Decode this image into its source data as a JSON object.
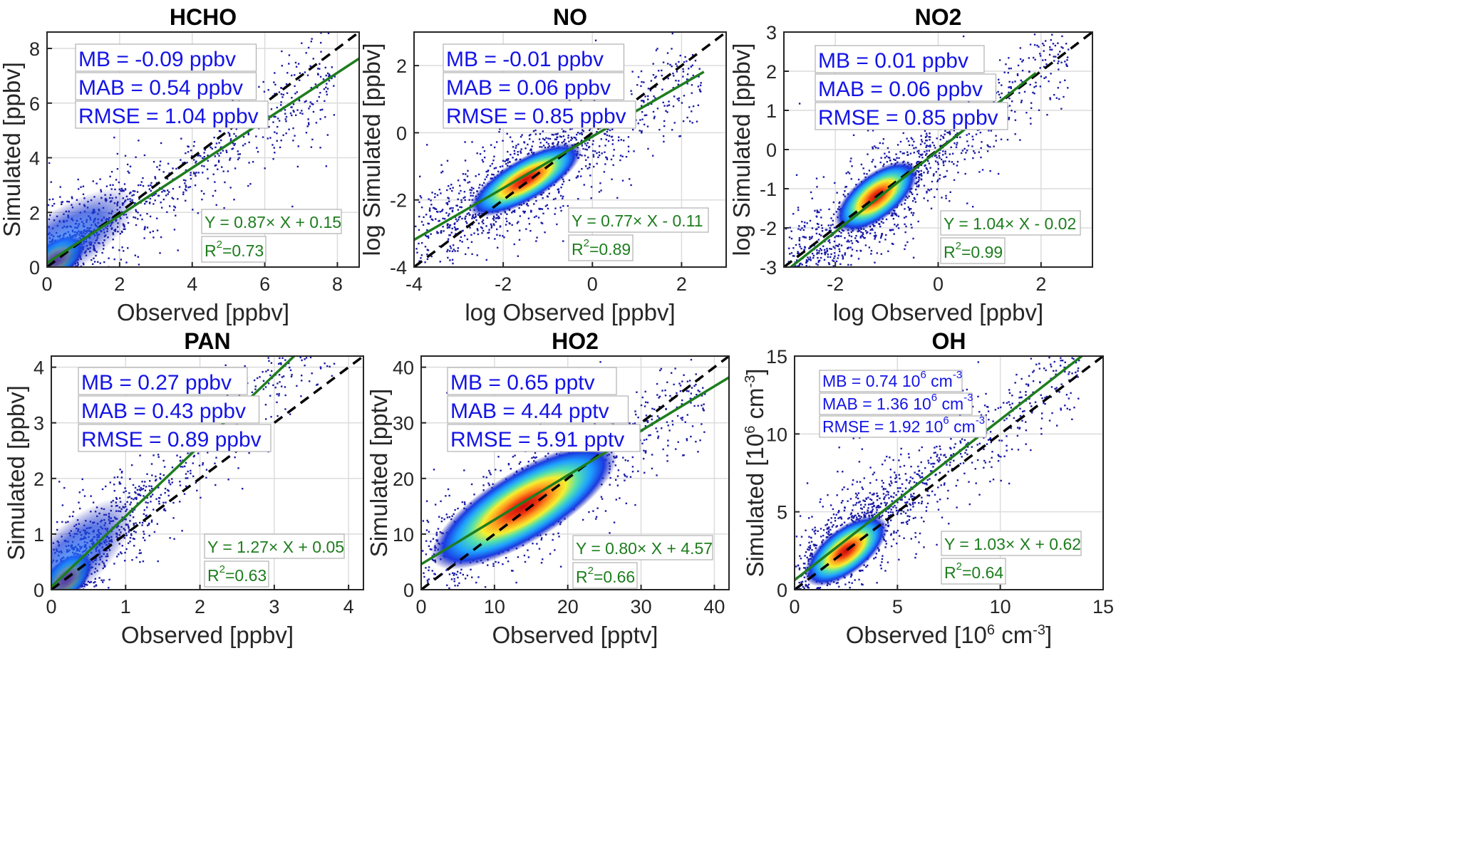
{
  "colors": {
    "scatter_points": "#1a1aa6",
    "density_core": "#e02010",
    "fit_line": "#1e7d1e",
    "one_to_one_line": "#000000",
    "stats_text": "#1414e6",
    "fit_text": "#1e7d1e"
  },
  "chart_data": [
    {
      "type": "scatter",
      "title": "HCHO",
      "xlabel": "Observed [ppbv]",
      "ylabel": "Simulated [ppbv]",
      "xlim": [
        0,
        8.6
      ],
      "ylim": [
        0,
        8.6
      ],
      "xticks": [
        "0",
        "2",
        "4",
        "6",
        "8"
      ],
      "xtick_values": [
        0,
        2,
        4,
        6,
        8
      ],
      "yticks": [
        "0",
        "2",
        "4",
        "6",
        "8"
      ],
      "ytick_values": [
        0,
        2,
        4,
        6,
        8
      ],
      "grid": true,
      "stats": [
        "MB = -0.09 ppbv",
        "MAB = 0.54 ppbv",
        "RMSE = 1.04 ppbv"
      ],
      "fit": {
        "slope": 0.87,
        "intercept": 0.15,
        "label": "Y = 0.87× X + 0.15",
        "r2_label": "R",
        "r2_value": "=0.73"
      },
      "one_to_one": true,
      "density_peak": [
        0.25,
        0.3
      ]
    },
    {
      "type": "scatter",
      "title": "NO",
      "xlabel": "log Observed [ppbv]",
      "ylabel": "log Simulated [ppbv]",
      "xlim": [
        -4,
        3
      ],
      "ylim": [
        -4,
        3
      ],
      "xticks": [
        "-4",
        "-2",
        "0",
        "2"
      ],
      "xtick_values": [
        -4,
        -2,
        0,
        2
      ],
      "yticks": [
        "-4",
        "-2",
        "0",
        "2"
      ],
      "ytick_values": [
        -4,
        -2,
        0,
        2
      ],
      "grid": true,
      "stats": [
        "MB = -0.01 ppbv",
        "MAB = 0.06 ppbv",
        "RMSE = 0.85 ppbv"
      ],
      "fit": {
        "slope": 0.77,
        "intercept": -0.11,
        "label": "Y = 0.77× X - 0.11",
        "r2_label": "R",
        "r2_value": "=0.89"
      },
      "fit_range": [
        -4,
        2.5
      ],
      "one_to_one": true,
      "density_peak": [
        -1.5,
        -1.4
      ]
    },
    {
      "type": "scatter",
      "title": "NO2",
      "xlabel": "log Observed [ppbv]",
      "ylabel": "log Simulated [ppbv]",
      "xlim": [
        -3,
        3
      ],
      "ylim": [
        -3,
        3
      ],
      "xticks": [
        "-2",
        "0",
        "2"
      ],
      "xtick_values": [
        -2,
        0,
        2
      ],
      "yticks": [
        "-3",
        "-2",
        "-1",
        "0",
        "1",
        "2",
        "3"
      ],
      "ytick_values": [
        -3,
        -2,
        -1,
        0,
        1,
        2,
        3
      ],
      "grid": true,
      "stats": [
        "MB = 0.01 ppbv",
        "MAB = 0.06 ppbv",
        "RMSE = 0.85 ppbv"
      ],
      "fit": {
        "slope": 1.04,
        "intercept": -0.02,
        "label": "Y = 1.04× X - 0.02",
        "r2_label": "R",
        "r2_value": "=0.99"
      },
      "fit_range": [
        -3,
        1.9
      ],
      "one_to_one": true,
      "density_peak": [
        -1.2,
        -1.2
      ]
    },
    {
      "type": "scatter",
      "title": "PAN",
      "xlabel": "Observed [ppbv]",
      "ylabel": "Simulated [ppbv]",
      "xlim": [
        0,
        4.2
      ],
      "ylim": [
        0,
        4.2
      ],
      "xticks": [
        "0",
        "1",
        "2",
        "3",
        "4"
      ],
      "xtick_values": [
        0,
        1,
        2,
        3,
        4
      ],
      "yticks": [
        "0",
        "1",
        "2",
        "3",
        "4"
      ],
      "ytick_values": [
        0,
        1,
        2,
        3,
        4
      ],
      "grid": true,
      "stats": [
        "MB = 0.27 ppbv",
        "MAB = 0.43 ppbv",
        "RMSE = 0.89 ppbv"
      ],
      "fit": {
        "slope": 1.27,
        "intercept": 0.05,
        "label": "Y = 1.27× X + 0.05",
        "r2_label": "R",
        "r2_value": "=0.63"
      },
      "one_to_one": true,
      "density_peak": [
        0.2,
        0.2
      ]
    },
    {
      "type": "scatter",
      "title": "HO2",
      "xlabel": "Observed [pptv]",
      "ylabel": "Simulated [pptv]",
      "xlim": [
        0,
        42
      ],
      "ylim": [
        0,
        42
      ],
      "xticks": [
        "0",
        "10",
        "20",
        "30",
        "40"
      ],
      "xtick_values": [
        0,
        10,
        20,
        30,
        40
      ],
      "yticks": [
        "0",
        "10",
        "20",
        "30",
        "40"
      ],
      "ytick_values": [
        0,
        10,
        20,
        30,
        40
      ],
      "grid": true,
      "stats": [
        "MB = 0.65 pptv",
        "MAB = 4.44 pptv",
        "RMSE = 5.91 pptv"
      ],
      "fit": {
        "slope": 0.8,
        "intercept": 4.57,
        "label": "Y = 0.80× X + 4.57",
        "r2_label": "R",
        "r2_value": "=0.66"
      },
      "one_to_one": true,
      "density_peak": [
        14,
        15
      ]
    },
    {
      "type": "scatter",
      "title": "OH",
      "xlabel_parts": [
        "Observed [10",
        "6",
        " cm",
        "-3",
        "]"
      ],
      "ylabel_parts": [
        "Simulated [10",
        "6",
        " cm",
        "-3",
        "]"
      ],
      "xlim": [
        0,
        15
      ],
      "ylim": [
        0,
        15
      ],
      "xticks": [
        "0",
        "5",
        "10",
        "15"
      ],
      "xtick_values": [
        0,
        5,
        10,
        15
      ],
      "yticks": [
        "0",
        "5",
        "10",
        "15"
      ],
      "ytick_values": [
        0,
        5,
        10,
        15
      ],
      "grid": true,
      "stats_parts": [
        [
          "MB = 0.74 10",
          "6",
          " cm",
          "-3"
        ],
        [
          "MAB = 1.36 10",
          "6",
          " cm",
          "-3"
        ],
        [
          "RMSE = 1.92 10",
          "6",
          " cm",
          "-3"
        ]
      ],
      "fit": {
        "slope": 1.03,
        "intercept": 0.62,
        "label": "Y = 1.03× X + 0.62",
        "r2_label": "R",
        "r2_value": "=0.64"
      },
      "one_to_one": true,
      "density_peak": [
        2.5,
        2.5
      ]
    }
  ]
}
